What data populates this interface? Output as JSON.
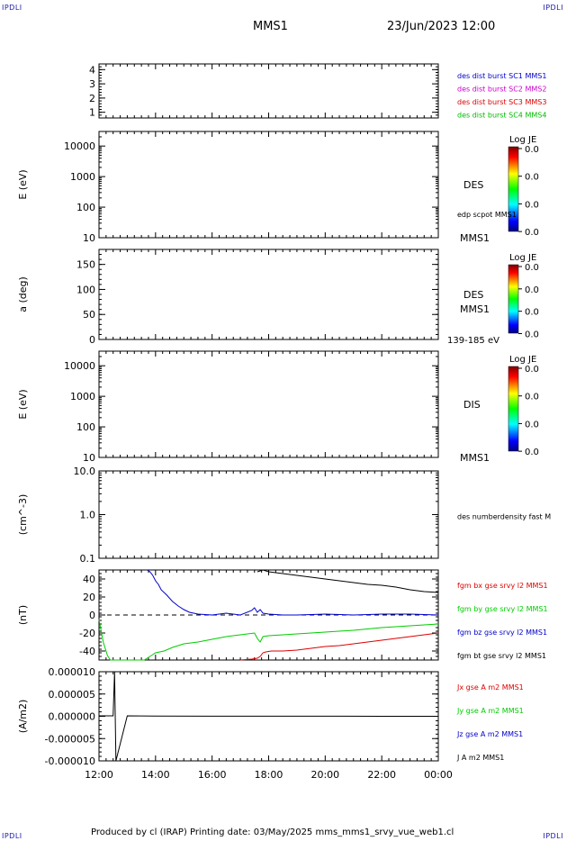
{
  "corners": {
    "top_left": "IPDLI",
    "top_right": "IPDLI",
    "bottom_left": "IPDLI",
    "bottom_right": "IPDLI"
  },
  "header": {
    "title": "MMS1",
    "datetime": "23/Jun/2023 12:00"
  },
  "footer": {
    "text": "Produced by cl (IRAP)   Printing date: 03/May/2025   mms_mms1_srvy_vue_web1.cl"
  },
  "x_axis": {
    "ticks": [
      "12:00",
      "14:00",
      "16:00",
      "18:00",
      "20:00",
      "22:00",
      "00:00"
    ]
  },
  "chart_data": [
    {
      "type": "line",
      "title": "",
      "ylabel": "",
      "ylim": [
        0.6,
        4.4
      ],
      "yticks": [
        "1",
        "2",
        "3",
        "4"
      ],
      "legend": [
        {
          "label": "des dist burst SC1 MMS1",
          "color": "#0000cc"
        },
        {
          "label": "des dist burst SC2 MMS2",
          "color": "#cc00cc"
        },
        {
          "label": "des dist burst SC3 MMS3",
          "color": "#dd0000"
        },
        {
          "label": "des dist burst SC4 MMS4",
          "color": "#00bb00"
        }
      ],
      "series": []
    },
    {
      "type": "heatmap",
      "ylabel": "E (eV)",
      "yscale": "log",
      "ylim": [
        10,
        30000
      ],
      "yticks": [
        "10",
        "100",
        "1000",
        "10000"
      ],
      "instrument": "DES",
      "line_label": "edp scpot MMS1",
      "spacecraft": "MMS1",
      "colorbar": {
        "title": "Log JE",
        "ticks": [
          "0.0",
          "0.0",
          "0.0",
          "0.0"
        ]
      }
    },
    {
      "type": "heatmap",
      "ylabel": "a (deg)",
      "ylim": [
        0,
        180
      ],
      "yticks": [
        "0",
        "50",
        "100",
        "150"
      ],
      "instrument": "DES",
      "spacecraft": "MMS1",
      "energy_range": "139-185 eV",
      "colorbar": {
        "title": "Log JE",
        "ticks": [
          "0.0",
          "0.0",
          "0.0",
          "0.0"
        ]
      }
    },
    {
      "type": "heatmap",
      "ylabel": "E (eV)",
      "yscale": "log",
      "ylim": [
        10,
        30000
      ],
      "yticks": [
        "10",
        "100",
        "1000",
        "10000"
      ],
      "instrument": "DIS",
      "spacecraft": "MMS1",
      "colorbar": {
        "title": "Log JE",
        "ticks": [
          "0.0",
          "0.0",
          "0.0",
          "0.0"
        ]
      }
    },
    {
      "type": "line",
      "ylabel": "(cm^-3)",
      "yscale": "log",
      "ylim": [
        0.1,
        10.0
      ],
      "yticks": [
        "0.1",
        "1.0",
        "10.0"
      ],
      "legend": [
        {
          "label": "des numberdensity fast M",
          "color": "#000000"
        }
      ],
      "series": []
    },
    {
      "type": "line",
      "ylabel": "(nT)",
      "ylim": [
        -50,
        50
      ],
      "yticks": [
        "-40",
        "-20",
        "0",
        "20",
        "40"
      ],
      "reference_line": 0,
      "x_unit": "hours since 12:00",
      "legend": [
        {
          "label": "fgm bx gse srvy l2 MMS1",
          "color": "#dd0000"
        },
        {
          "label": "fgm by gse srvy l2 MMS1",
          "color": "#00cc00"
        },
        {
          "label": "fgm bz gse srvy l2 MMS1",
          "color": "#0000cc"
        },
        {
          "label": "fgm bt gse srvy l2 MMS1",
          "color": "#000000"
        }
      ],
      "series": [
        {
          "name": "fgm bx gse srvy l2 MMS1",
          "color": "#dd0000",
          "x": [
            5.0,
            5.4,
            5.6,
            5.7,
            5.75,
            5.8,
            5.9,
            6.1,
            6.5,
            7.0,
            7.5,
            8.0,
            8.5,
            9.0,
            9.5,
            10.0,
            10.5,
            11.0,
            11.5,
            12.0
          ],
          "y": [
            -50,
            -49,
            -48,
            -46,
            -44,
            -42,
            -41,
            -40,
            -40,
            -39,
            -37,
            -35,
            -34,
            -32,
            -30,
            -28,
            -26,
            -24,
            -22,
            -20
          ]
        },
        {
          "name": "fgm by gse srvy l2 MMS1",
          "color": "#00cc00",
          "x": [
            0.0,
            0.15,
            0.3,
            0.4,
            1.6,
            1.8,
            2.0,
            2.3,
            2.6,
            3.0,
            3.5,
            4.0,
            4.5,
            5.0,
            5.5,
            5.6,
            5.7,
            5.8,
            6.0,
            6.5,
            7.0,
            8.0,
            9.0,
            10.0,
            11.0,
            12.0
          ],
          "y": [
            -5,
            -30,
            -45,
            -50,
            -50,
            -46,
            -42,
            -40,
            -36,
            -32,
            -30,
            -27,
            -24,
            -22,
            -20,
            -26,
            -30,
            -24,
            -23,
            -22,
            -21,
            -19,
            -17,
            -14,
            -12,
            -10
          ]
        },
        {
          "name": "fgm bz gse srvy l2 MMS1",
          "color": "#0000cc",
          "x": [
            1.7,
            1.8,
            1.9,
            2.0,
            2.1,
            2.2,
            2.4,
            2.6,
            2.8,
            3.0,
            3.2,
            3.5,
            4.0,
            4.5,
            5.0,
            5.4,
            5.5,
            5.6,
            5.7,
            5.8,
            6.0,
            6.5,
            7.0,
            8.0,
            9.0,
            10.0,
            11.0,
            12.0
          ],
          "y": [
            50,
            48,
            44,
            38,
            34,
            28,
            22,
            15,
            10,
            6,
            3,
            1,
            0,
            2,
            0,
            5,
            8,
            3,
            6,
            2,
            1,
            0,
            0,
            1,
            0,
            1,
            1,
            0
          ]
        },
        {
          "name": "fgm bt gse srvy l2 MMS1",
          "color": "#000000",
          "x": [
            5.6,
            5.8,
            6.0,
            6.5,
            7.0,
            7.5,
            8.0,
            8.5,
            9.0,
            9.5,
            10.0,
            10.5,
            11.0,
            11.5,
            12.0
          ],
          "y": [
            48,
            50,
            48,
            46,
            44,
            42,
            40,
            38,
            36,
            34,
            33,
            31,
            28,
            26,
            25
          ]
        }
      ]
    },
    {
      "type": "line",
      "ylabel": "(A/m2)",
      "ylim": [
        -1e-05,
        1e-05
      ],
      "yticks": [
        "-0.000010",
        "-0.000005",
        "0.000000",
        "0.000005",
        "0.000010"
      ],
      "legend": [
        {
          "label": "Jx gse A m2 MMS1",
          "color": "#dd0000"
        },
        {
          "label": "Jy gse A m2 MMS1",
          "color": "#00cc00"
        },
        {
          "label": "Jz gse A m2 MMS1",
          "color": "#0000cc"
        },
        {
          "label": "J A m2 MMS1",
          "color": "#000000"
        }
      ],
      "series": [
        {
          "name": "J A m2 MMS1",
          "color": "#000000",
          "x": [
            0.0,
            0.5,
            0.55,
            0.6,
            1.0,
            2.0,
            4.0,
            6.0,
            8.0,
            10.0,
            12.0
          ],
          "y": [
            1e-07,
            1e-07,
            1e-05,
            -1e-05,
            1e-07,
            5e-08,
            3e-08,
            2e-08,
            2e-08,
            1e-08,
            1e-08
          ]
        }
      ]
    }
  ]
}
